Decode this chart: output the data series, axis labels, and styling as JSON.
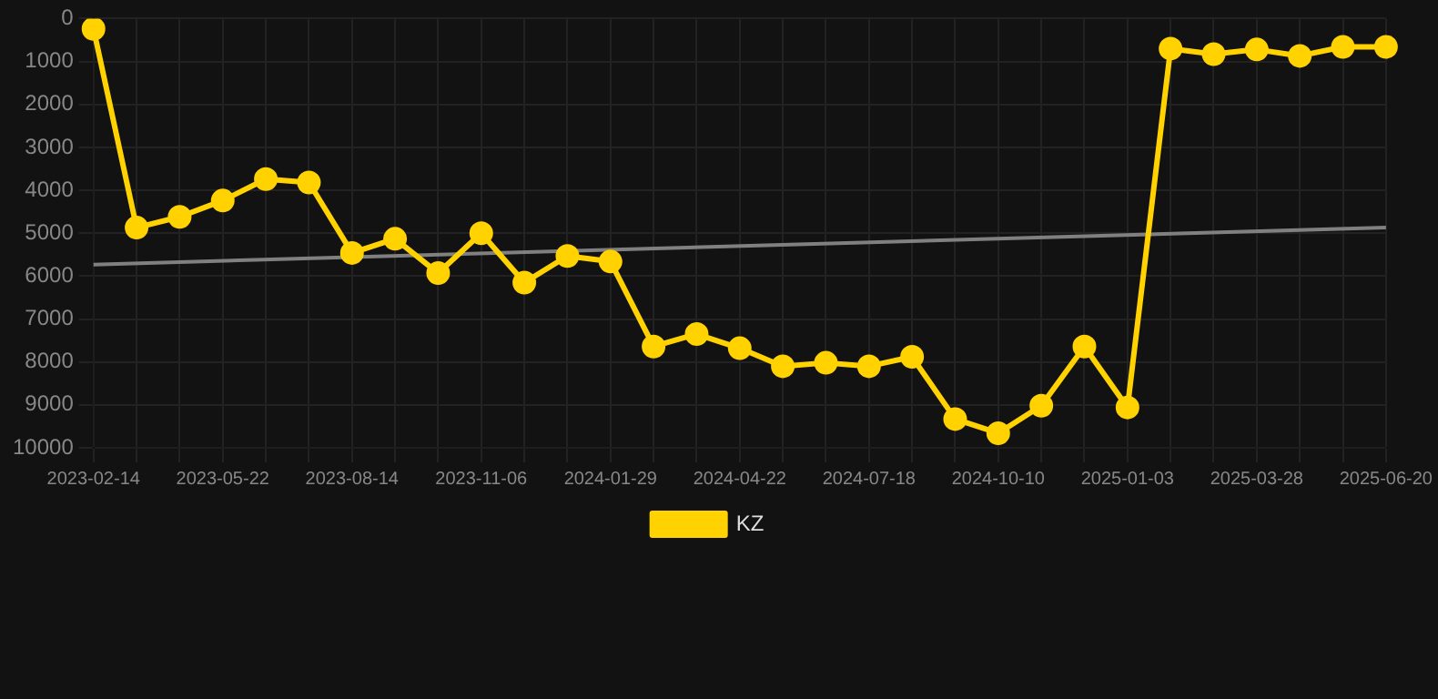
{
  "chart_data": {
    "type": "line",
    "categories": [
      "2023-02-14",
      null,
      null,
      "2023-05-22",
      null,
      null,
      "2023-08-14",
      null,
      null,
      "2023-11-06",
      null,
      null,
      "2024-01-29",
      null,
      null,
      "2024-04-22",
      null,
      null,
      "2024-07-18",
      null,
      null,
      "2024-10-10",
      null,
      null,
      "2025-01-03",
      null,
      null,
      "2025-03-28",
      null,
      null,
      "2025-06-20"
    ],
    "series": [
      {
        "name": "KZ",
        "color": "#ffd200",
        "marker": "circle",
        "values": [
          240,
          4870,
          4620,
          4240,
          3740,
          3820,
          5460,
          5130,
          5930,
          5000,
          6150,
          5530,
          5660,
          7640,
          7350,
          7680,
          8100,
          8020,
          8100,
          7880,
          9330,
          9660,
          9020,
          7640,
          9060,
          700,
          830,
          720,
          870,
          660,
          660
        ]
      },
      {
        "type": "line",
        "color": "#808080",
        "marker": "none",
        "values": [
          5730,
          null,
          null,
          null,
          null,
          null,
          null,
          null,
          null,
          null,
          null,
          null,
          null,
          null,
          null,
          null,
          null,
          null,
          null,
          null,
          null,
          null,
          null,
          null,
          null,
          null,
          null,
          null,
          null,
          null,
          4870
        ]
      }
    ],
    "ylim": [
      10000,
      0
    ],
    "yticks": [
      0,
      1000,
      2000,
      3000,
      4000,
      5000,
      6000,
      7000,
      8000,
      9000,
      10000
    ],
    "grid": true,
    "legend": "bottom",
    "line_style": "solid"
  }
}
